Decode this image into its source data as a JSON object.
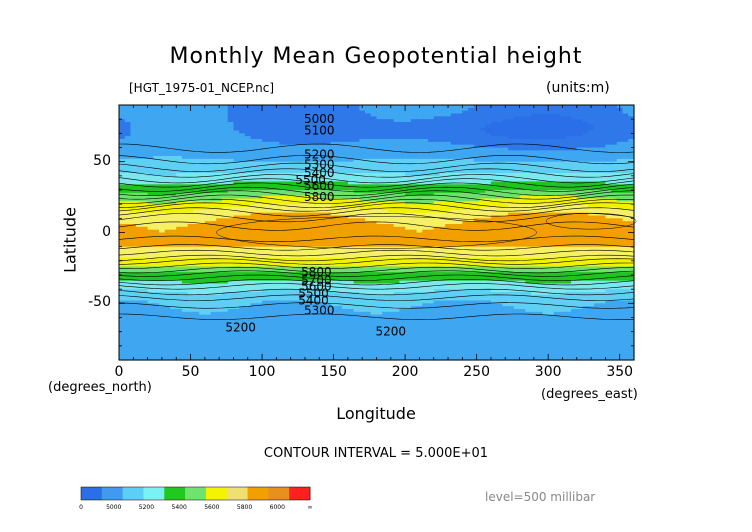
{
  "chart_data": {
    "type": "heatmap",
    "title": "Monthly Mean Geopotential height",
    "file_label": "[HGT_1975-01_NCEP.nc]",
    "units_label": "(units:m)",
    "xlabel": "Longitude",
    "ylabel": "Latitude",
    "x_unit_label": "(degrees_east)",
    "y_unit_label": "(degrees_north)",
    "xlim": [
      0,
      360
    ],
    "ylim": [
      -90,
      90
    ],
    "x_ticks": [
      "0",
      "50",
      "100",
      "150",
      "200",
      "250",
      "300",
      "350"
    ],
    "y_ticks": [
      "50",
      "0",
      "-50"
    ],
    "contour_interval_label": "CONTOUR INTERVAL = 5.000E+01",
    "level_label": "level=500 millibar",
    "contour_labels": [
      {
        "text": "5000",
        "lon": 140,
        "lat": 80
      },
      {
        "text": "5100",
        "lon": 140,
        "lat": 72
      },
      {
        "text": "5200",
        "lon": 140,
        "lat": 55
      },
      {
        "text": "5300",
        "lon": 140,
        "lat": 48
      },
      {
        "text": "5400",
        "lon": 140,
        "lat": 42
      },
      {
        "text": "5500",
        "lon": 134,
        "lat": 37
      },
      {
        "text": "5600",
        "lon": 140,
        "lat": 33
      },
      {
        "text": "5800",
        "lon": 140,
        "lat": 25
      },
      {
        "text": "5800",
        "lon": 138,
        "lat": -28
      },
      {
        "text": "5700",
        "lon": 138,
        "lat": -34
      },
      {
        "text": "5600",
        "lon": 138,
        "lat": -38
      },
      {
        "text": "5500",
        "lon": 136,
        "lat": -43
      },
      {
        "text": "5400",
        "lon": 136,
        "lat": -48
      },
      {
        "text": "5300",
        "lon": 140,
        "lat": -55
      },
      {
        "text": "5200",
        "lon": 85,
        "lat": -67
      },
      {
        "text": "5200",
        "lon": 190,
        "lat": -70
      }
    ],
    "colorbar": {
      "labels": [
        "0",
        "5000",
        "5200",
        "5400",
        "5600",
        "5800",
        "6000",
        "∞"
      ],
      "colors": [
        "#2b6fe8",
        "#3f9af0",
        "#5ccff7",
        "#7af2f4",
        "#1fc91f",
        "#6ee36e",
        "#f4f400",
        "#f0e070",
        "#f2a000",
        "#e8901c",
        "#ff2020"
      ]
    },
    "band_colors": {
      "v4950": "#2b6fe8",
      "v5050": "#2e78ea",
      "v5150": "#3fa6f1",
      "v5250": "#5fd0f4",
      "v5350": "#7ae8ee",
      "v5450": "#20c420",
      "v5550": "#6ee06e",
      "v5650": "#f2f200",
      "v5750": "#f5f064",
      "v5850": "#f2a000"
    }
  }
}
